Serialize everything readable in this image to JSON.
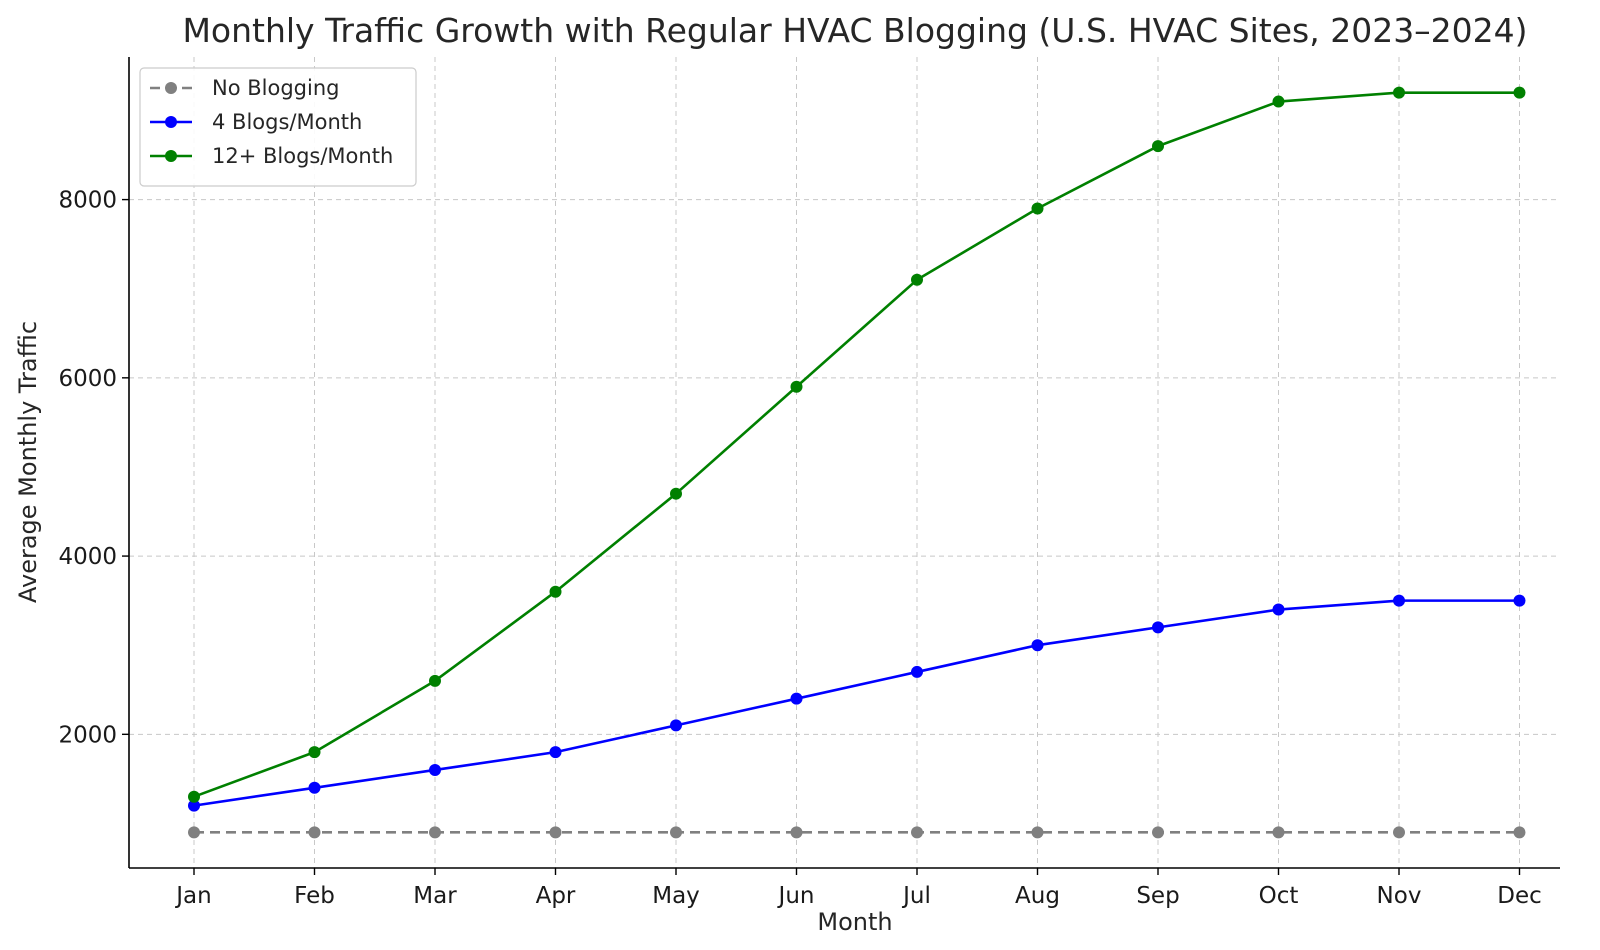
{
  "chart_data": {
    "type": "line",
    "title": "Monthly Traffic Growth with Regular HVAC Blogging (U.S. HVAC Sites, 2023–2024)",
    "xlabel": "Month",
    "ylabel": "Average Monthly Traffic",
    "categories": [
      "Jan",
      "Feb",
      "Mar",
      "Apr",
      "May",
      "Jun",
      "Jul",
      "Aug",
      "Sep",
      "Oct",
      "Nov",
      "Dec"
    ],
    "ylim": [
      500,
      9600
    ],
    "yticks": [
      2000,
      4000,
      6000,
      8000
    ],
    "grid": true,
    "legend_position": "top-left",
    "series": [
      {
        "name": "No Blogging",
        "color": "#808080",
        "line_style": "dashed",
        "marker": "circle",
        "values": [
          900,
          900,
          900,
          900,
          900,
          900,
          900,
          900,
          900,
          900,
          900,
          900
        ]
      },
      {
        "name": "4 Blogs/Month",
        "color": "#0000ff",
        "line_style": "solid",
        "marker": "circle",
        "values": [
          1200,
          1400,
          1600,
          1800,
          2100,
          2400,
          2700,
          3000,
          3200,
          3400,
          3500,
          3500
        ]
      },
      {
        "name": "12+ Blogs/Month",
        "color": "#008000",
        "line_style": "solid",
        "marker": "circle",
        "values": [
          1300,
          1800,
          2600,
          3600,
          4700,
          5900,
          7100,
          7900,
          8600,
          9100,
          9200,
          9200
        ]
      }
    ]
  }
}
